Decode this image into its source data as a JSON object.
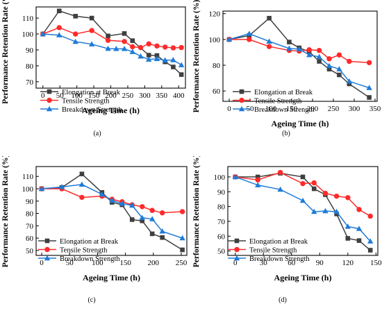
{
  "colors": {
    "elongation": "#3f3f3f",
    "tensile": "#ff2a2a",
    "breakdown": "#1f7bd8"
  },
  "chart_data": [
    {
      "panel": "(a)",
      "type": "line",
      "xlabel": "Ageing Time (h)",
      "ylabel": "Performance Retention Rate (%)",
      "xlim": [
        -20,
        420
      ],
      "ylim": [
        66,
        117
      ],
      "xticks": [
        0,
        50,
        100,
        150,
        200,
        250,
        300,
        350,
        400
      ],
      "yticks": [
        70,
        80,
        90,
        100,
        110
      ],
      "legend": "bottom-left",
      "series": [
        {
          "name": "Elongation at Break",
          "marker": "square",
          "color": "#3f3f3f",
          "x": [
            0,
            48,
            96,
            144,
            192,
            240,
            264,
            312,
            336,
            360,
            384,
            408
          ],
          "y": [
            100,
            114.5,
            111.2,
            110,
            98.8,
            100.3,
            95.8,
            86.7,
            86.5,
            82.5,
            79.3,
            74.5
          ]
        },
        {
          "name": "Tensile Strength",
          "marker": "circle",
          "color": "#ff2a2a",
          "x": [
            0,
            48,
            96,
            144,
            192,
            240,
            264,
            288,
            312,
            336,
            360,
            384,
            408
          ],
          "y": [
            100,
            104,
            100,
            102.2,
            96,
            95.3,
            92,
            91.5,
            93.8,
            92.5,
            91.8,
            91.3,
            91.5
          ]
        },
        {
          "name": "Breakdown Strength",
          "marker": "triangle",
          "color": "#1f7bd8",
          "x": [
            0,
            48,
            96,
            144,
            192,
            216,
            240,
            264,
            288,
            312,
            336,
            360,
            384,
            408
          ],
          "y": [
            100,
            99.3,
            95.2,
            93.6,
            90.8,
            90.7,
            90.7,
            88.8,
            86,
            84,
            84.4,
            83.5,
            83.7,
            80.5
          ]
        }
      ]
    },
    {
      "panel": "(b)",
      "type": "line",
      "xlabel": "Ageing Time (h)",
      "ylabel": "Performance Retention Rate (%)",
      "xlim": [
        -15,
        355
      ],
      "ylim": [
        52,
        122
      ],
      "xticks": [
        0,
        50,
        100,
        150,
        200,
        250,
        300,
        350
      ],
      "yticks": [
        60,
        80,
        100,
        120
      ],
      "legend": "bottom-left",
      "series": [
        {
          "name": "Elongation at Break",
          "marker": "square",
          "color": "#3f3f3f",
          "x": [
            0,
            48,
            96,
            144,
            168,
            192,
            216,
            240,
            264,
            288,
            336
          ],
          "y": [
            100,
            103,
            116.5,
            98,
            93.5,
            90.5,
            83,
            77,
            72.5,
            65.5,
            55
          ]
        },
        {
          "name": "Tensile Strength",
          "marker": "circle",
          "color": "#ff2a2a",
          "x": [
            0,
            48,
            96,
            144,
            168,
            192,
            216,
            240,
            264,
            288,
            336
          ],
          "y": [
            100,
            100,
            94.5,
            91.5,
            91,
            92,
            91.5,
            85,
            88,
            83,
            82
          ]
        },
        {
          "name": "Breakdown Strength",
          "marker": "triangle",
          "color": "#1f7bd8",
          "x": [
            0,
            48,
            96,
            144,
            168,
            192,
            216,
            240,
            264,
            288,
            336
          ],
          "y": [
            100,
            104.5,
            98.5,
            93,
            92.5,
            88,
            86.5,
            79.5,
            77,
            67.5,
            62.5
          ]
        }
      ]
    },
    {
      "panel": "(c)",
      "type": "line",
      "xlabel": "Ageing Time (h)",
      "ylabel": "Performance Retention Rate (%)",
      "xlim": [
        -10,
        260
      ],
      "ylim": [
        46,
        118
      ],
      "xticks": [
        0,
        50,
        100,
        150,
        200,
        250
      ],
      "yticks": [
        50,
        60,
        70,
        80,
        90,
        100,
        110
      ],
      "legend": "bottom-left",
      "series": [
        {
          "name": "Elongation at Break",
          "marker": "square",
          "color": "#3f3f3f",
          "x": [
            0,
            36,
            72,
            108,
            126,
            144,
            162,
            180,
            198,
            216,
            252
          ],
          "y": [
            100,
            101,
            112,
            97,
            89,
            87,
            75,
            74,
            63.5,
            60.5,
            50.5
          ]
        },
        {
          "name": "Tensile Strength",
          "marker": "circle",
          "color": "#ff2a2a",
          "x": [
            0,
            36,
            72,
            108,
            126,
            144,
            162,
            180,
            198,
            216,
            252
          ],
          "y": [
            100,
            100,
            93,
            94,
            91.5,
            89.5,
            87,
            85.5,
            82.5,
            80.5,
            81.5
          ]
        },
        {
          "name": "Breakdown Strength",
          "marker": "triangle",
          "color": "#1f7bd8",
          "x": [
            0,
            36,
            72,
            108,
            126,
            144,
            162,
            180,
            198,
            216,
            252
          ],
          "y": [
            100,
            101.5,
            103.5,
            95.5,
            90.5,
            88,
            86.5,
            76.5,
            75.5,
            65.5,
            60
          ]
        }
      ]
    },
    {
      "panel": "(d)",
      "type": "line",
      "xlabel": "Ageing Time (h)",
      "ylabel": "Performance Retention Rate (%)",
      "xlim": [
        -8,
        152
      ],
      "ylim": [
        47,
        107
      ],
      "xticks": [
        0,
        30,
        60,
        90,
        120,
        150
      ],
      "yticks": [
        50,
        60,
        70,
        80,
        90,
        100
      ],
      "legend": "bottom-left",
      "series": [
        {
          "name": "Elongation at Break",
          "marker": "square",
          "color": "#3f3f3f",
          "x": [
            0,
            24,
            48,
            72,
            84,
            96,
            108,
            120,
            132,
            144
          ],
          "y": [
            100,
            100,
            102.5,
            100,
            92,
            88,
            75,
            58.5,
            57,
            50.5
          ]
        },
        {
          "name": "Tensile Strength",
          "marker": "circle",
          "color": "#ff2a2a",
          "x": [
            0,
            24,
            48,
            72,
            84,
            96,
            108,
            120,
            132,
            144
          ],
          "y": [
            100,
            98,
            103,
            95.5,
            96,
            89,
            87,
            86,
            78,
            73.5
          ]
        },
        {
          "name": "Breakdown Strength",
          "marker": "triangle",
          "color": "#1f7bd8",
          "x": [
            0,
            24,
            48,
            72,
            84,
            96,
            108,
            120,
            132,
            144
          ],
          "y": [
            100,
            94.5,
            91.5,
            84,
            76.5,
            77,
            76.5,
            66.5,
            65,
            56.5
          ]
        }
      ]
    }
  ]
}
